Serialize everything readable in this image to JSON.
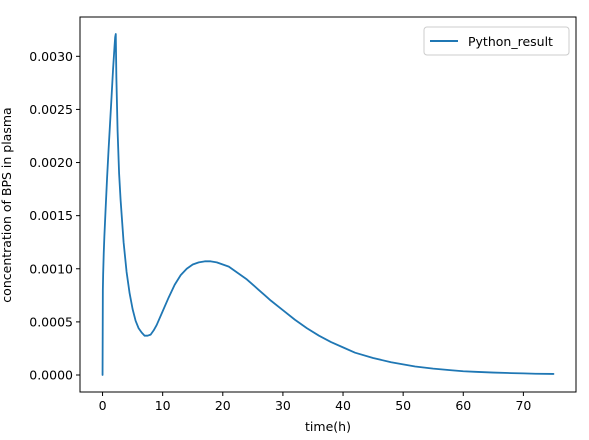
{
  "chart_data": {
    "type": "line",
    "title": "",
    "xlabel": "time(h)",
    "ylabel": "concentration of BPS in plasma",
    "xlim": [
      -3.75,
      78.75
    ],
    "ylim": [
      -0.00016,
      0.00337
    ],
    "x_ticks": [
      0,
      10,
      20,
      30,
      40,
      50,
      60,
      70
    ],
    "x_tick_labels": [
      "0",
      "10",
      "20",
      "30",
      "40",
      "50",
      "60",
      "70"
    ],
    "y_ticks": [
      0.0,
      0.0005,
      0.001,
      0.0015,
      0.002,
      0.0025,
      0.003
    ],
    "y_tick_labels": [
      "0.0000",
      "0.0005",
      "0.0010",
      "0.0015",
      "0.0020",
      "0.0025",
      "0.0030"
    ],
    "grid": false,
    "legend_position": "top-right",
    "series": [
      {
        "name": "Python_result",
        "color": "#1f77b4",
        "x": [
          0,
          0.05,
          0.1,
          0.2,
          0.3,
          0.5,
          0.75,
          1.0,
          1.25,
          1.5,
          1.75,
          2.0,
          2.1,
          2.2,
          2.3,
          2.5,
          2.75,
          3.0,
          3.5,
          4.0,
          4.5,
          5.0,
          5.5,
          6.0,
          6.5,
          7.0,
          7.5,
          8.0,
          8.5,
          9.0,
          10,
          11,
          12,
          13,
          14,
          15,
          16,
          17,
          18,
          19,
          20,
          21,
          22,
          23,
          24,
          25,
          26,
          27,
          28,
          30,
          32,
          34,
          36,
          38,
          40,
          42,
          45,
          48,
          50,
          52,
          55,
          58,
          60,
          62,
          65,
          68,
          70,
          72,
          75
        ],
        "y": [
          0.0,
          0.0008,
          0.00095,
          0.00115,
          0.0013,
          0.00155,
          0.00185,
          0.00212,
          0.00237,
          0.00262,
          0.00288,
          0.0031,
          0.00318,
          0.00321,
          0.0028,
          0.0023,
          0.0019,
          0.00165,
          0.00125,
          0.00097,
          0.00077,
          0.00062,
          0.00051,
          0.00044,
          0.0004,
          0.00037,
          0.00037,
          0.00038,
          0.00042,
          0.00047,
          0.0006,
          0.00073,
          0.00085,
          0.00094,
          0.001,
          0.00104,
          0.00106,
          0.00107,
          0.00107,
          0.00106,
          0.00104,
          0.00102,
          0.00098,
          0.00094,
          0.0009,
          0.00085,
          0.0008,
          0.00075,
          0.0007,
          0.00061,
          0.00052,
          0.00044,
          0.00037,
          0.00031,
          0.00026,
          0.00021,
          0.00016,
          0.00012,
          0.0001,
          8e-05,
          6e-05,
          4.5e-05,
          3.5e-05,
          3e-05,
          2.3e-05,
          1.8e-05,
          1.5e-05,
          1.2e-05,
          1e-05
        ]
      }
    ]
  }
}
